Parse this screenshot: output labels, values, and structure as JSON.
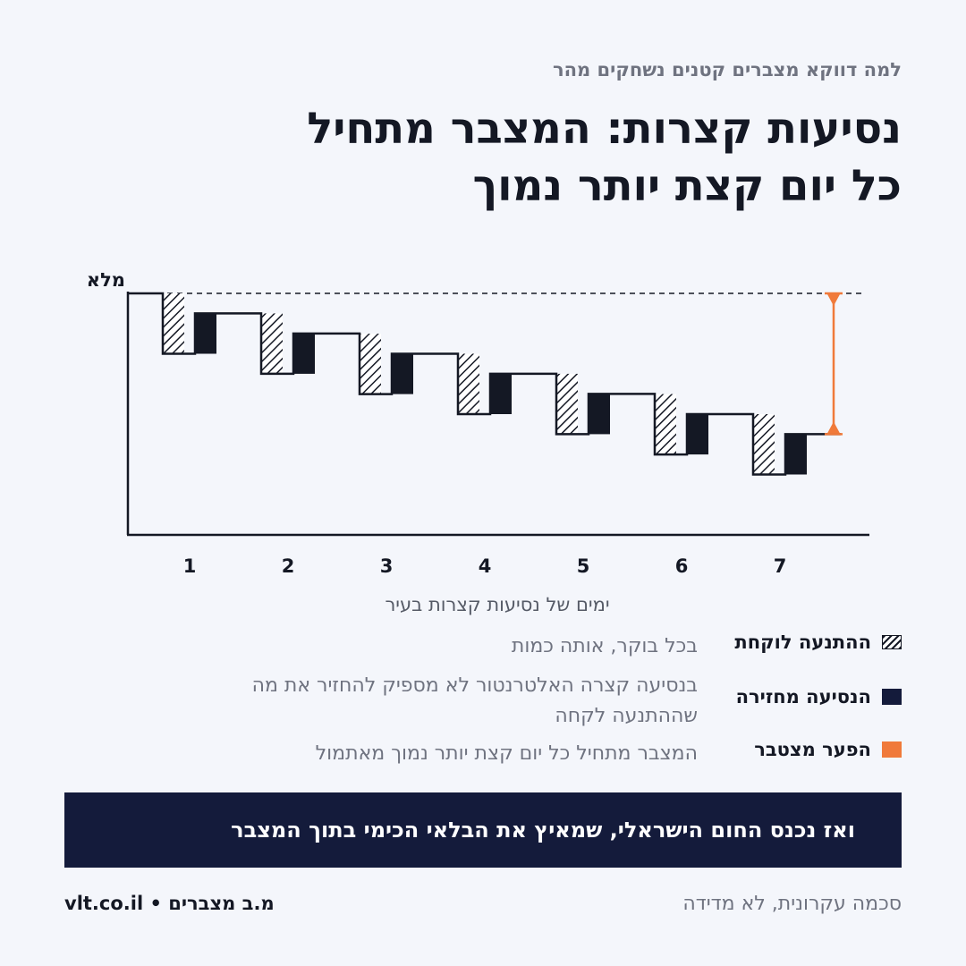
{
  "header": {
    "kicker": "למה דווקא מצברים קטנים נשחקים מהר",
    "title_line1": "נסיעות קצרות: המצבר מתחיל",
    "title_line2": "כל יום קצת יותר נמוך"
  },
  "chart_data": {
    "type": "bar",
    "ylabel": "מלא",
    "xlabel": "ימים של נסיעות קצרות בעיר",
    "categories": [
      "1",
      "2",
      "3",
      "4",
      "5",
      "6",
      "7"
    ],
    "y_scale": "relative charge (0 = empty axis, 100 = full)",
    "ylim": [
      0,
      100
    ],
    "start_level": 100,
    "series": [
      {
        "name": "ההתנעה לוקחת",
        "values": [
          25,
          25,
          25,
          25,
          25,
          25,
          25
        ]
      },
      {
        "name": "הנסיעה מחזירה",
        "values": [
          16.7,
          16.7,
          16.7,
          16.7,
          16.7,
          16.7,
          16.7
        ]
      }
    ],
    "morning_levels": [
      100,
      91.7,
      83.3,
      75,
      66.7,
      58.3,
      50
    ],
    "end_levels": [
      91.7,
      83.3,
      75,
      66.7,
      58.3,
      50,
      41.7
    ],
    "gap": {
      "from": 100,
      "to": 41.7,
      "name": "הפער מצטבר"
    },
    "colors": {
      "hatch": "#141824",
      "return": "#141824",
      "gap": "#f07a3a",
      "axis": "#141824"
    }
  },
  "legend": {
    "items": [
      {
        "key": "ההתנעה לוקחת",
        "desc": "בכל בוקר, אותה כמות",
        "swatch": "hatch"
      },
      {
        "key": "הנסיעה מחזירה",
        "desc": "בנסיעה קצרה האלטרנטור לא מספיק להחזיר את מה שההתנעה לקחה",
        "swatch": "solid",
        "color": "#141b3b"
      },
      {
        "key": "הפער מצטבר",
        "desc": "המצבר מתחיל כל יום קצת יותר נמוך מאתמול",
        "swatch": "solid",
        "color": "#f07a3a"
      }
    ]
  },
  "banner": {
    "text": "ואז נכנס החום הישראלי, שמאיץ את הבלאי הכימי בתוך המצבר"
  },
  "footer": {
    "brand": "vlt.co.il • מ.ב מצברים",
    "note": "סכמה עקרונית, לא מדידה"
  }
}
